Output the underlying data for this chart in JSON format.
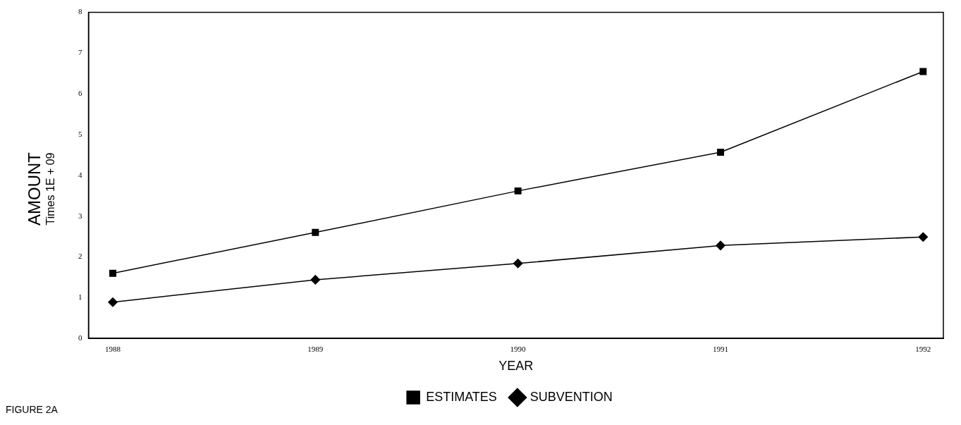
{
  "chart_data": {
    "type": "line",
    "xlabel": "YEAR",
    "ylabel": "AMOUNT",
    "x": [
      1988,
      1989,
      1990,
      1991,
      1992
    ],
    "series": [
      {
        "name": "ESTIMATES",
        "color": "#000000",
        "marker": "square",
        "values": [
          1.6,
          2.6,
          3.62,
          4.57,
          6.55
        ]
      },
      {
        "name": "SUBVENTION",
        "color": "#000000",
        "marker": "diamond",
        "values": [
          0.89,
          1.44,
          1.84,
          2.28,
          2.49
        ]
      }
    ],
    "xlim": [
      1987.88,
      1992.1
    ],
    "xticks": [
      1988,
      1989,
      1990,
      1991,
      1992
    ],
    "ylim": [
      0,
      8
    ],
    "yticks": [
      0,
      1,
      2,
      3,
      4,
      5,
      6,
      7,
      8
    ],
    "grid": false,
    "legend": "bottom",
    "line_style": "solid",
    "annotations": [
      "Times 1E + 09",
      "FIGURE 2A"
    ]
  }
}
